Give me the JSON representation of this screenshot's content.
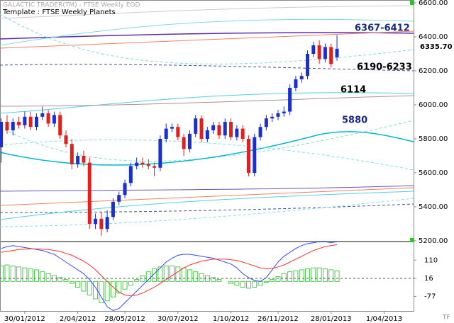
{
  "chart_data": [
    {
      "type": "candlestick",
      "title": "GALACTIC TRADER(TM) - FTSE Weekly EOD",
      "subtitle": "Template : FTSE Weekly Planets",
      "up_color": "#1a2fd0",
      "down_color": "#e0201c",
      "open": [
        5750,
        5900,
        5850,
        5900,
        5880,
        5930,
        5870,
        5930,
        5950,
        5890,
        5940,
        5820,
        5770,
        5650,
        5700,
        5660,
        5300,
        5330,
        5270,
        5340,
        5430,
        5470,
        5540,
        5640,
        5660,
        5650,
        5640,
        5630,
        5800,
        5860,
        5870,
        5810,
        5740,
        5830,
        5920,
        5800,
        5850,
        5880,
        5820,
        5900,
        5810,
        5860,
        5800,
        5600,
        5810,
        5870,
        5920,
        5930,
        5950,
        5960,
        6100,
        6150,
        6170,
        6300,
        6350,
        6270,
        6340,
        6280
      ],
      "high": [
        5920,
        5940,
        5920,
        5930,
        5960,
        5960,
        5950,
        5990,
        5970,
        5960,
        5960,
        5850,
        5800,
        5720,
        5730,
        5690,
        5360,
        5370,
        5380,
        5450,
        5490,
        5560,
        5660,
        5690,
        5690,
        5680,
        5660,
        5820,
        5890,
        5890,
        5890,
        5830,
        5850,
        5940,
        5940,
        5870,
        5900,
        5900,
        5920,
        5920,
        5880,
        5880,
        5820,
        5830,
        5890,
        5940,
        5950,
        5970,
        5990,
        6120,
        6170,
        6190,
        6320,
        6370,
        6380,
        6360,
        6360,
        6410
      ],
      "low": [
        5660,
        5830,
        5820,
        5860,
        5860,
        5850,
        5850,
        5910,
        5870,
        5870,
        5800,
        5750,
        5620,
        5630,
        5640,
        5270,
        5270,
        5230,
        5250,
        5320,
        5410,
        5450,
        5520,
        5620,
        5630,
        5620,
        5580,
        5610,
        5780,
        5840,
        5790,
        5700,
        5720,
        5810,
        5780,
        5780,
        5830,
        5800,
        5800,
        5790,
        5790,
        5780,
        5580,
        5580,
        5790,
        5850,
        5900,
        5910,
        5930,
        5940,
        6080,
        6130,
        6150,
        6280,
        6240,
        6250,
        6220,
        6260
      ],
      "close": [
        5900,
        5850,
        5900,
        5880,
        5930,
        5870,
        5930,
        5950,
        5890,
        5940,
        5820,
        5770,
        5650,
        5700,
        5660,
        5300,
        5330,
        5270,
        5340,
        5430,
        5470,
        5540,
        5640,
        5660,
        5650,
        5640,
        5630,
        5800,
        5860,
        5870,
        5810,
        5740,
        5830,
        5920,
        5800,
        5850,
        5880,
        5820,
        5900,
        5810,
        5860,
        5800,
        5600,
        5810,
        5870,
        5920,
        5930,
        5950,
        5960,
        6100,
        6150,
        6170,
        6300,
        6350,
        6270,
        6340,
        6240,
        6330
      ],
      "xlim": [
        -0.2,
        70
      ],
      "xticks": [
        {
          "value": 4,
          "label": "30/01/2012"
        },
        {
          "value": 13,
          "label": "2/04/2012"
        },
        {
          "value": 21,
          "label": "28/05/2012"
        },
        {
          "value": 30,
          "label": "30/07/2012"
        },
        {
          "value": 39,
          "label": "1/10/2012"
        },
        {
          "value": 47,
          "label": "26/11/2012"
        },
        {
          "value": 56,
          "label": "28/01/2013"
        },
        {
          "value": 65,
          "label": "1/04/2013"
        }
      ],
      "ylim": [
        5200,
        6600
      ],
      "yticks": [
        {
          "value": 5200,
          "label": "5200.00"
        },
        {
          "value": 5400,
          "label": "5400.00"
        },
        {
          "value": 5600,
          "label": "5600.00"
        },
        {
          "value": 5800,
          "label": "5800.00"
        },
        {
          "value": 6000,
          "label": "6000.00"
        },
        {
          "value": 6200,
          "label": "6200.00"
        },
        {
          "value": 6400,
          "label": "6400.00"
        },
        {
          "value": 6600,
          "label": "6600.00"
        }
      ],
      "annotations": [
        "6367-6412",
        "6190-6233",
        "6114",
        "5880",
        "6335.70"
      ],
      "logo": "TF"
    },
    {
      "type": "combo",
      "ylim": [
        -156,
        206
      ],
      "yticks": [
        -77,
        16,
        110
      ],
      "histogram": {
        "color": "#4ccc4c",
        "values": [
          80,
          85,
          80,
          75,
          70,
          65,
          60,
          50,
          40,
          30,
          20,
          10,
          -10,
          -30,
          -50,
          -70,
          -90,
          -110,
          -100,
          -80,
          -60,
          -40,
          -20,
          10,
          30,
          50,
          65,
          75,
          80,
          80,
          75,
          70,
          60,
          50,
          40,
          30,
          20,
          10,
          0,
          -10,
          -20,
          -30,
          -35,
          -30,
          -20,
          -5,
          10,
          25,
          40,
          50,
          55,
          60,
          65,
          70,
          70,
          65,
          60,
          55
        ]
      },
      "series": [
        {
          "color": "#2f4cff",
          "values": [
            170,
            180,
            185,
            180,
            175,
            170,
            165,
            160,
            150,
            140,
            120,
            100,
            80,
            60,
            40,
            10,
            -30,
            -80,
            -130,
            -150,
            -140,
            -110,
            -80,
            -50,
            -20,
            10,
            40,
            70,
            100,
            120,
            135,
            140,
            140,
            135,
            130,
            125,
            120,
            110,
            100,
            90,
            70,
            40,
            20,
            5,
            0,
            20,
            60,
            100,
            130,
            150,
            170,
            185,
            195,
            200,
            205,
            205,
            200,
            205
          ]
        },
        {
          "color": "#ff3030",
          "values": [
            150,
            155,
            160,
            165,
            167,
            168,
            168,
            167,
            165,
            160,
            155,
            145,
            135,
            120,
            105,
            85,
            60,
            30,
            0,
            -30,
            -55,
            -70,
            -75,
            -70,
            -60,
            -45,
            -30,
            -10,
            10,
            30,
            50,
            70,
            85,
            95,
            105,
            110,
            115,
            115,
            115,
            112,
            108,
            100,
            90,
            80,
            70,
            65,
            68,
            75,
            85,
            100,
            115,
            130,
            145,
            160,
            170,
            180,
            185,
            190
          ]
        }
      ]
    }
  ]
}
